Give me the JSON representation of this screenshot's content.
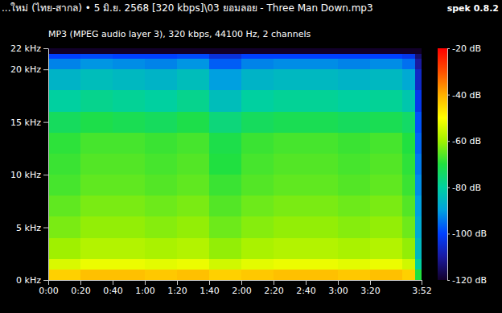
{
  "chart_data": {
    "type": "heatmap",
    "title": "...ใหม่ (ไทย-สากล) • 5 มิ.ย. 2568 [320 kbps]\\03 ยอมลอย - Three Man Down.mp3",
    "subtitle": "MP3 (MPEG audio layer 3), 320 kbps, 44100 Hz, 2 channels",
    "annotations": [
      "spek 0.8.2"
    ],
    "xlim": [
      0,
      232
    ],
    "xticks": [
      {
        "value": 0,
        "label": "0:00"
      },
      {
        "value": 20,
        "label": "0:20"
      },
      {
        "value": 40,
        "label": "0:40"
      },
      {
        "value": 60,
        "label": "1:00"
      },
      {
        "value": 80,
        "label": "1:20"
      },
      {
        "value": 100,
        "label": "1:40"
      },
      {
        "value": 120,
        "label": "2:00"
      },
      {
        "value": 140,
        "label": "2:20"
      },
      {
        "value": 160,
        "label": "2:40"
      },
      {
        "value": 180,
        "label": "3:00"
      },
      {
        "value": 200,
        "label": "3:20"
      },
      {
        "value": 232,
        "label": "3:52"
      }
    ],
    "ylim": [
      0,
      22
    ],
    "yticks": [
      {
        "value": 0,
        "label": "0 kHz"
      },
      {
        "value": 5,
        "label": "5 kHz"
      },
      {
        "value": 10,
        "label": "10 kHz"
      },
      {
        "value": 15,
        "label": "15 kHz"
      },
      {
        "value": 20,
        "label": "20 kHz"
      },
      {
        "value": 22,
        "label": "22 kHz"
      }
    ],
    "x_edges": [
      0,
      20,
      40,
      60,
      80,
      100,
      120,
      140,
      160,
      180,
      200,
      220,
      228,
      232
    ],
    "y_edges": [
      0,
      1,
      2,
      4,
      6,
      8,
      10,
      12,
      14,
      16,
      18,
      20,
      21,
      21.5,
      22
    ],
    "cells": [
      [
        -44,
        -42,
        -42,
        -43,
        -42,
        -44,
        -43,
        -42,
        -42,
        -43,
        -42,
        -44,
        -70
      ],
      [
        -54,
        -52,
        -52,
        -53,
        -52,
        -55,
        -53,
        -52,
        -52,
        -53,
        -52,
        -55,
        -80
      ],
      [
        -60,
        -58,
        -58,
        -59,
        -58,
        -61,
        -59,
        -58,
        -58,
        -59,
        -58,
        -61,
        -85
      ],
      [
        -63,
        -61,
        -61,
        -62,
        -61,
        -64,
        -62,
        -61,
        -61,
        -62,
        -61,
        -64,
        -88
      ],
      [
        -65,
        -63,
        -63,
        -64,
        -63,
        -66,
        -64,
        -63,
        -63,
        -64,
        -63,
        -66,
        -90
      ],
      [
        -67,
        -65,
        -65,
        -66,
        -65,
        -68,
        -66,
        -65,
        -65,
        -66,
        -65,
        -68,
        -92
      ],
      [
        -68,
        -66,
        -66,
        -67,
        -66,
        -70,
        -67,
        -66,
        -66,
        -67,
        -66,
        -69,
        -94
      ],
      [
        -69,
        -67,
        -67,
        -68,
        -67,
        -71,
        -68,
        -67,
        -67,
        -68,
        -67,
        -70,
        -96
      ],
      [
        -73,
        -71,
        -72,
        -73,
        -71,
        -76,
        -73,
        -72,
        -72,
        -73,
        -72,
        -74,
        -98
      ],
      [
        -80,
        -78,
        -79,
        -80,
        -78,
        -84,
        -80,
        -79,
        -79,
        -80,
        -79,
        -82,
        -102
      ],
      [
        -86,
        -84,
        -85,
        -86,
        -84,
        -90,
        -86,
        -85,
        -85,
        -86,
        -85,
        -88,
        -106
      ],
      [
        -93,
        -91,
        -92,
        -93,
        -91,
        -97,
        -93,
        -92,
        -92,
        -93,
        -92,
        -95,
        -110
      ],
      [
        -100,
        -99,
        -100,
        -100,
        -99,
        -104,
        -100,
        -100,
        -100,
        -100,
        -100,
        -102,
        -114
      ],
      [
        -120,
        -120,
        -120,
        -120,
        -120,
        -120,
        -120,
        -120,
        -120,
        -120,
        -120,
        -120,
        -120
      ]
    ],
    "colorbar": {
      "range": [
        -120,
        -20
      ],
      "ticks": [
        {
          "value": -20,
          "label": "-20 dB"
        },
        {
          "value": -40,
          "label": "-40 dB"
        },
        {
          "value": -60,
          "label": "-60 dB"
        },
        {
          "value": -80,
          "label": "-80 dB"
        },
        {
          "value": -100,
          "label": "-100 dB"
        },
        {
          "value": -120,
          "label": "-120 dB"
        }
      ]
    }
  }
}
